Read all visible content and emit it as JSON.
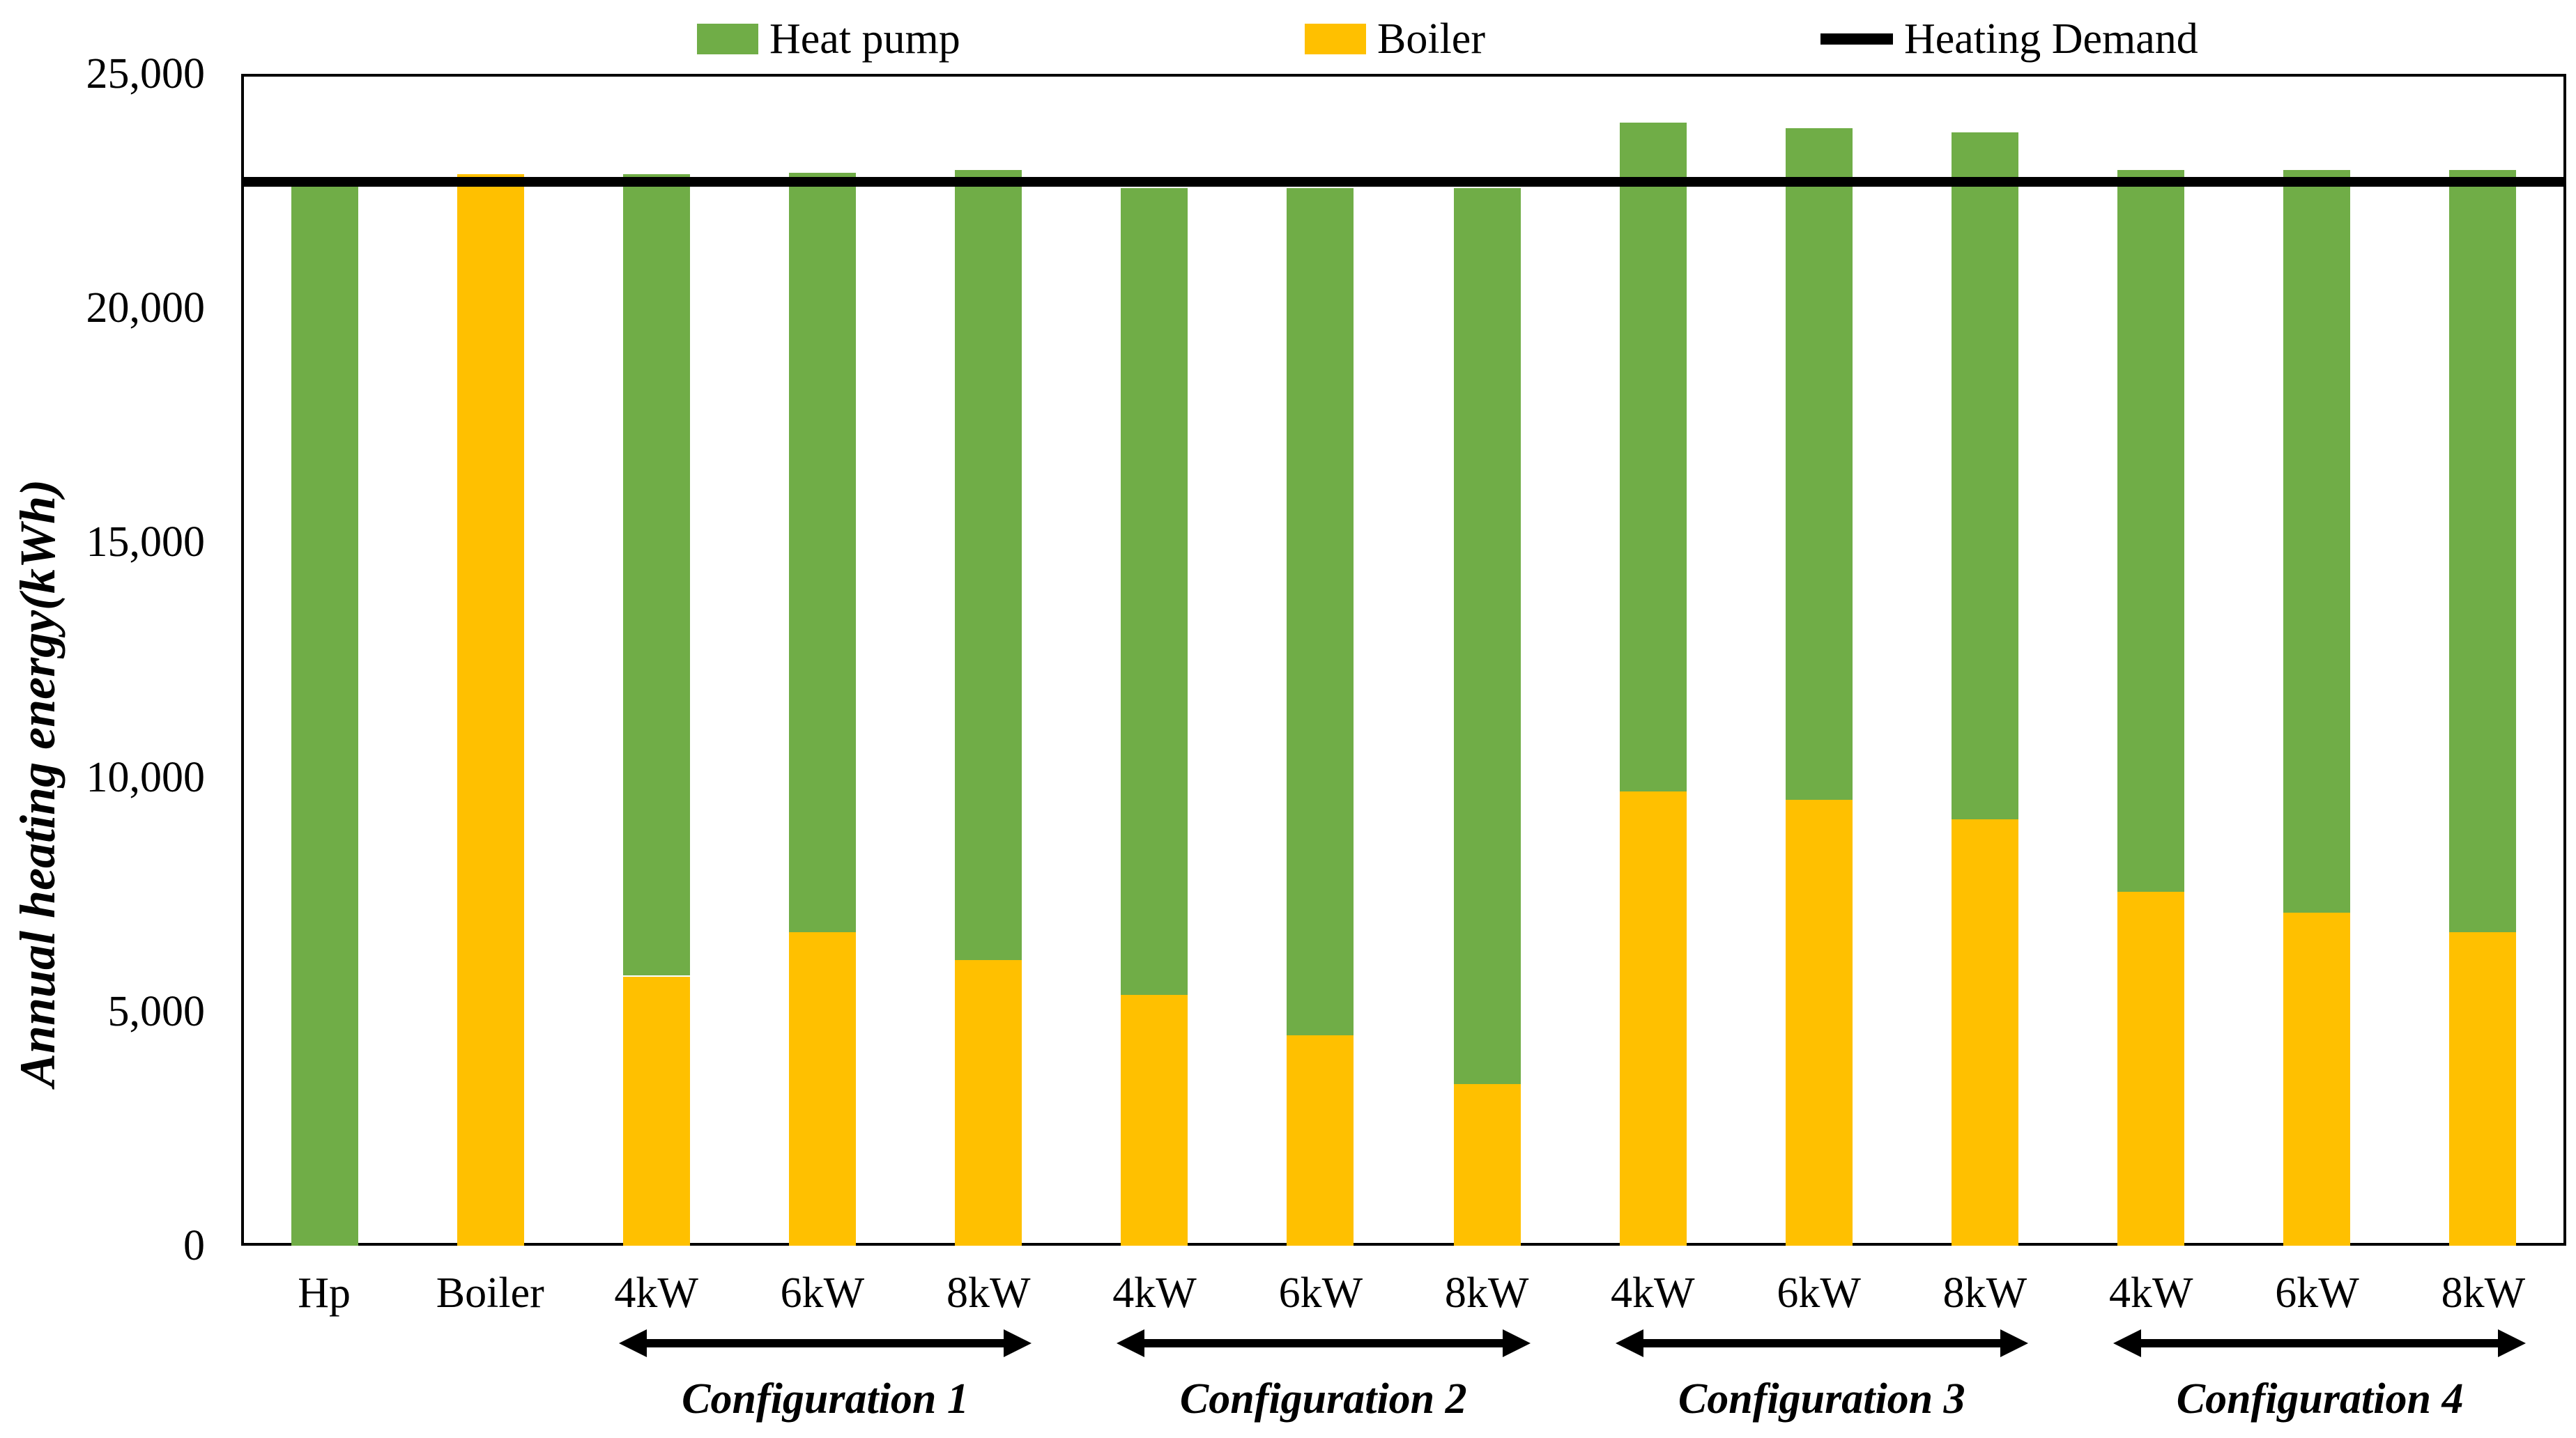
{
  "chart_data": {
    "type": "stacked-bar",
    "title": "",
    "ylabel": "Annual heating energy(kWh)",
    "xlabel": "",
    "y_axis": {
      "min": 0,
      "max": 25000,
      "tick_step": 5000,
      "tick_labels": [
        "0",
        "5,000",
        "10,000",
        "15,000",
        "20,000",
        "25,000"
      ]
    },
    "grid": "off",
    "legend_position": "top",
    "categories": [
      "Hp",
      "Boiler",
      "4kW",
      "6kW",
      "8kW",
      "4kW",
      "6kW",
      "8kW",
      "4kW",
      "6kW",
      "8kW",
      "4kW",
      "6kW",
      "8kW"
    ],
    "series": [
      {
        "name": "Boiler",
        "color": "#FFC000",
        "values": [
          0,
          22850,
          5750,
          6700,
          6100,
          5350,
          4500,
          3450,
          9700,
          9500,
          9100,
          7550,
          7100,
          6700
        ]
      },
      {
        "name": "Heat pump",
        "color": "#70AD47",
        "values": [
          22600,
          0,
          17100,
          16200,
          16850,
          17200,
          18050,
          19100,
          14250,
          14350,
          14650,
          15400,
          15850,
          16250
        ]
      }
    ],
    "stack_totals": [
      22600,
      22850,
      22850,
      22900,
      22950,
      22550,
      22550,
      22550,
      23950,
      23850,
      23750,
      22950,
      22950,
      22950
    ],
    "heating_demand": {
      "label": "Heating Demand",
      "value": 22700,
      "color": "#000000"
    },
    "legend": [
      {
        "label": "Heat pump",
        "color": "#70AD47",
        "type": "swatch"
      },
      {
        "label": "Boiler",
        "color": "#FFC000",
        "type": "swatch"
      },
      {
        "label": "Heating Demand",
        "color": "#000000",
        "type": "line"
      }
    ],
    "groups": [
      {
        "label": "Configuration 1",
        "start_index": 2,
        "end_index": 4
      },
      {
        "label": "Configuration 2",
        "start_index": 5,
        "end_index": 7
      },
      {
        "label": "Configuration 3",
        "start_index": 8,
        "end_index": 10
      },
      {
        "label": "Configuration 4",
        "start_index": 11,
        "end_index": 13
      }
    ]
  }
}
